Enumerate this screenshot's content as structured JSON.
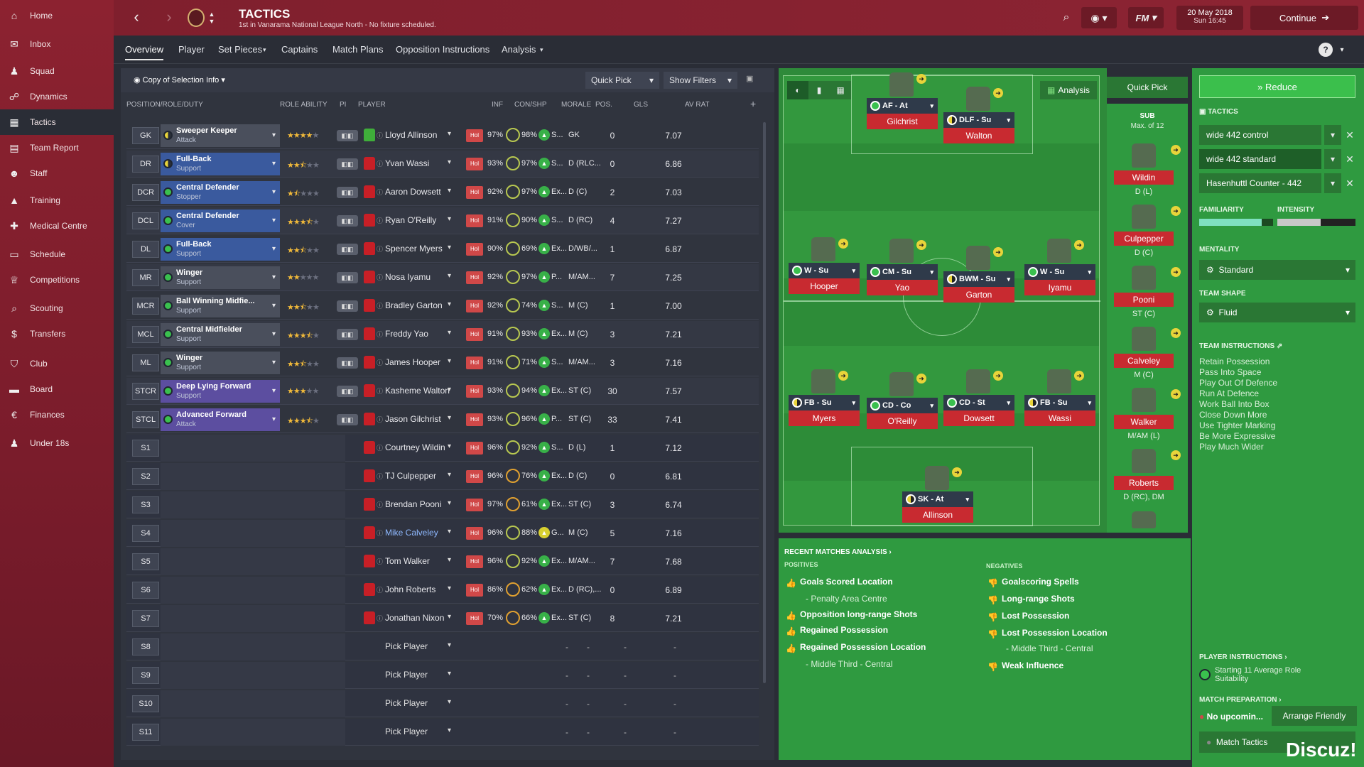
{
  "sidebar": {
    "items": [
      {
        "label": "Home",
        "icon": "home-icon"
      },
      {
        "label": "Inbox",
        "icon": "inbox-icon"
      },
      {
        "label": "Squad",
        "icon": "squad-icon"
      },
      {
        "label": "Dynamics",
        "icon": "dynamics-icon"
      },
      {
        "label": "Tactics",
        "icon": "tactics-icon"
      },
      {
        "label": "Team Report",
        "icon": "report-icon"
      },
      {
        "label": "Staff",
        "icon": "staff-icon"
      },
      {
        "label": "Training",
        "icon": "training-icon"
      },
      {
        "label": "Medical Centre",
        "icon": "medical-icon"
      },
      {
        "label": "Schedule",
        "icon": "calendar-icon"
      },
      {
        "label": "Competitions",
        "icon": "trophy-icon"
      },
      {
        "label": "Scouting",
        "icon": "search-icon"
      },
      {
        "label": "Transfers",
        "icon": "transfers-icon"
      },
      {
        "label": "Club",
        "icon": "shield-icon"
      },
      {
        "label": "Board",
        "icon": "board-icon"
      },
      {
        "label": "Finances",
        "icon": "finance-icon"
      },
      {
        "label": "Under 18s",
        "icon": "youth-icon"
      }
    ]
  },
  "header": {
    "title": "TACTICS",
    "subtitle": "1st in Vanarama National League North - No fixture scheduled.",
    "date": "20 May 2018",
    "time": "Sun 16:45",
    "continue": "Continue",
    "fm": "FM"
  },
  "subnav": [
    "Overview",
    "Player",
    "Set Pieces",
    "Captains",
    "Match Plans",
    "Opposition Instructions",
    "Analysis"
  ],
  "toolbar": {
    "selection": "Copy of Selection Info",
    "quick_pick": "Quick Pick",
    "show_filters": "Show Filters"
  },
  "columns": [
    "POSITION/ROLE/DUTY",
    "ROLE ABILITY",
    "PI",
    "PLAYER",
    "INF",
    "CON/SHP",
    "MORALE",
    "POS.",
    "GLS",
    "AV RAT"
  ],
  "starters": [
    {
      "pos": "GK",
      "role": "Sweeper Keeper",
      "duty": "Attack",
      "stars": 4,
      "player": "Lloyd Allinson",
      "inf": "Hol",
      "con": "97%",
      "shp": "98%",
      "morale": "S...",
      "ppos": "GK",
      "gls": "0",
      "rat": "7.07"
    },
    {
      "pos": "DR",
      "role": "Full-Back",
      "duty": "Support",
      "stars": 2.5,
      "player": "Yvan Wassi",
      "inf": "Hol",
      "con": "93%",
      "shp": "97%",
      "morale": "S...",
      "ppos": "D (RLC...",
      "gls": "0",
      "rat": "6.86"
    },
    {
      "pos": "DCR",
      "role": "Central Defender",
      "duty": "Stopper",
      "stars": 1.5,
      "player": "Aaron Dowsett",
      "inf": "Hol",
      "con": "92%",
      "shp": "97%",
      "morale": "Ex...",
      "ppos": "D (C)",
      "gls": "2",
      "rat": "7.03"
    },
    {
      "pos": "DCL",
      "role": "Central Defender",
      "duty": "Cover",
      "stars": 3.5,
      "player": "Ryan O'Reilly",
      "inf": "Hol",
      "con": "91%",
      "shp": "90%",
      "morale": "S...",
      "ppos": "D (RC)",
      "gls": "4",
      "rat": "7.27"
    },
    {
      "pos": "DL",
      "role": "Full-Back",
      "duty": "Support",
      "stars": 2.5,
      "player": "Spencer Myers",
      "inf": "Hol",
      "con": "90%",
      "shp": "69%",
      "morale": "Ex...",
      "ppos": "D/WB/...",
      "gls": "1",
      "rat": "6.87"
    },
    {
      "pos": "MR",
      "role": "Winger",
      "duty": "Support",
      "stars": 2,
      "player": "Nosa Iyamu",
      "inf": "Hol",
      "con": "92%",
      "shp": "97%",
      "morale": "P...",
      "ppos": "M/AM...",
      "gls": "7",
      "rat": "7.25"
    },
    {
      "pos": "MCR",
      "role": "Ball Winning Midfie...",
      "duty": "Support",
      "stars": 2.5,
      "player": "Bradley Garton",
      "inf": "Hol",
      "con": "92%",
      "shp": "74%",
      "morale": "S...",
      "ppos": "M (C)",
      "gls": "1",
      "rat": "7.00"
    },
    {
      "pos": "MCL",
      "role": "Central Midfielder",
      "duty": "Support",
      "stars": 3.5,
      "player": "Freddy Yao",
      "inf": "Hol",
      "con": "91%",
      "shp": "93%",
      "morale": "Ex...",
      "ppos": "M (C)",
      "gls": "3",
      "rat": "7.21"
    },
    {
      "pos": "ML",
      "role": "Winger",
      "duty": "Support",
      "stars": 2.5,
      "player": "James Hooper",
      "inf": "Hol",
      "con": "91%",
      "shp": "71%",
      "morale": "S...",
      "ppos": "M/AM...",
      "gls": "3",
      "rat": "7.16"
    },
    {
      "pos": "STCR",
      "role": "Deep Lying Forward",
      "duty": "Support",
      "stars": 3,
      "player": "Kasheme Walton",
      "inf": "Hol",
      "con": "93%",
      "shp": "94%",
      "morale": "Ex...",
      "ppos": "ST (C)",
      "gls": "30",
      "rat": "7.57"
    },
    {
      "pos": "STCL",
      "role": "Advanced Forward",
      "duty": "Attack",
      "stars": 3.5,
      "player": "Jason Gilchrist",
      "inf": "Hol",
      "con": "93%",
      "shp": "96%",
      "morale": "P...",
      "ppos": "ST (C)",
      "gls": "33",
      "rat": "7.41"
    }
  ],
  "subs": [
    {
      "pos": "S1",
      "player": "Courtney Wildin",
      "inf": "Hol",
      "con": "96%",
      "shp": "92%",
      "morale": "S...",
      "ppos": "D (L)",
      "gls": "1",
      "rat": "7.12"
    },
    {
      "pos": "S2",
      "player": "TJ Culpepper",
      "inf": "Hol",
      "con": "96%",
      "shp": "76%",
      "morale": "Ex...",
      "ppos": "D (C)",
      "gls": "0",
      "rat": "6.81"
    },
    {
      "pos": "S3",
      "player": "Brendan Pooni",
      "inf": "Hol",
      "con": "97%",
      "shp": "61%",
      "morale": "Ex...",
      "ppos": "ST (C)",
      "gls": "3",
      "rat": "6.74"
    },
    {
      "pos": "S4",
      "player": "Mike Calveley",
      "inf": "Hol",
      "con": "96%",
      "shp": "88%",
      "morale": "G...",
      "ppos": "M (C)",
      "gls": "5",
      "rat": "7.16"
    },
    {
      "pos": "S5",
      "player": "Tom Walker",
      "inf": "Hol",
      "con": "96%",
      "shp": "92%",
      "morale": "Ex...",
      "ppos": "M/AM...",
      "gls": "7",
      "rat": "7.68"
    },
    {
      "pos": "S6",
      "player": "John Roberts",
      "inf": "Hol",
      "con": "86%",
      "shp": "62%",
      "morale": "Ex...",
      "ppos": "D (RC),...",
      "gls": "0",
      "rat": "6.89"
    },
    {
      "pos": "S7",
      "player": "Jonathan Nixon",
      "inf": "Hol",
      "con": "70%",
      "shp": "66%",
      "morale": "Ex...",
      "ppos": "ST (C)",
      "gls": "8",
      "rat": "7.21"
    },
    {
      "pos": "S8",
      "player": "Pick Player"
    },
    {
      "pos": "S9",
      "player": "Pick Player"
    },
    {
      "pos": "S10",
      "player": "Pick Player"
    },
    {
      "pos": "S11",
      "player": "Pick Player"
    }
  ],
  "pitch": {
    "analysis_button": "Analysis",
    "players": [
      {
        "role": "AF - At",
        "name": "Gilchrist"
      },
      {
        "role": "DLF - Su",
        "name": "Walton"
      },
      {
        "role": "W - Su",
        "name": "Hooper"
      },
      {
        "role": "CM - Su",
        "name": "Yao"
      },
      {
        "role": "BWM - Su",
        "name": "Garton"
      },
      {
        "role": "W - Su",
        "name": "Iyamu"
      },
      {
        "role": "FB - Su",
        "name": "Myers"
      },
      {
        "role": "CD - Co",
        "name": "O'Reilly"
      },
      {
        "role": "CD - St",
        "name": "Dowsett"
      },
      {
        "role": "FB - Su",
        "name": "Wassi"
      },
      {
        "role": "SK - At",
        "name": "Allinson"
      }
    ]
  },
  "bench": {
    "quick_pick": "Quick Pick",
    "title": "SUB",
    "max": "Max. of 12",
    "players": [
      {
        "name": "Wildin",
        "pos": "D (L)"
      },
      {
        "name": "Culpepper",
        "pos": "D (C)"
      },
      {
        "name": "Pooni",
        "pos": "ST (C)"
      },
      {
        "name": "Calveley",
        "pos": "M (C)"
      },
      {
        "name": "Walker",
        "pos": "M/AM (L)"
      },
      {
        "name": "Roberts",
        "pos": "D (RC), DM"
      }
    ]
  },
  "right_panel": {
    "reduce": "Reduce",
    "tactics_label": "TACTICS",
    "tactics": [
      "wide 442 control",
      "wide 442 standard",
      "Hasenhuttl Counter - 442"
    ],
    "familiarity": "FAMILIARITY",
    "intensity": "INTENSITY",
    "familiarity_level": 0.85,
    "intensity_level": 0.55,
    "mentality_label": "MENTALITY",
    "mentality": "Standard",
    "shape_label": "TEAM SHAPE",
    "shape": "Fluid",
    "instructions_label": "TEAM INSTRUCTIONS",
    "instructions": [
      "Retain Possession",
      "Pass Into Space",
      "Play Out Of Defence",
      "Run At Defence",
      "Work Ball Into Box",
      "Close Down More",
      "Use Tighter Marking",
      "Be More Expressive",
      "Play Much Wider"
    ],
    "player_instructions": "PLAYER INSTRUCTIONS",
    "suitability": "Starting 11 Average Role Suitability",
    "match_prep": "MATCH PREPARATION",
    "no_upcoming": "No upcomin...",
    "arrange": "Arrange Friendly",
    "match_tactics": "Match Tactics"
  },
  "analysis": {
    "title": "RECENT MATCHES ANALYSIS",
    "positives_label": "POSITIVES",
    "negatives_label": "NEGATIVES",
    "positives": [
      "Goals Scored Location",
      "- Penalty Area Centre",
      "Opposition long-range Shots",
      "Regained Possession",
      "Regained Possession Location",
      "- Middle Third - Central"
    ],
    "negatives": [
      "Goalscoring Spells",
      "Long-range Shots",
      "Lost Possession",
      "Lost Possession Location",
      "- Middle Third - Central",
      "Weak Influence"
    ]
  },
  "watermark": "Discuz!"
}
